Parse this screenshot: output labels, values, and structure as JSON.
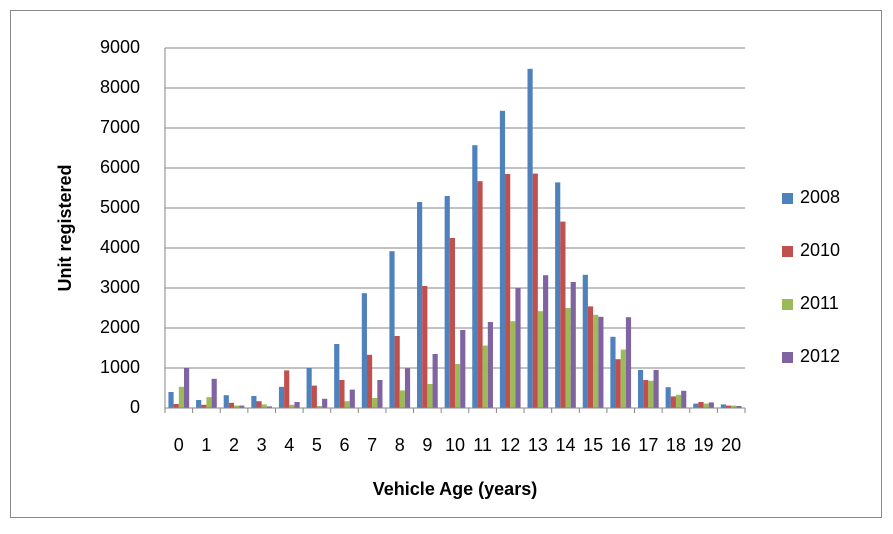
{
  "chart_data": {
    "type": "bar",
    "x_label": "Vehicle Age (years)",
    "y_label": "Unit registered",
    "categories": [
      "0",
      "1",
      "2",
      "3",
      "4",
      "5",
      "6",
      "7",
      "8",
      "9",
      "10",
      "11",
      "12",
      "13",
      "14",
      "15",
      "16",
      "17",
      "18",
      "19",
      "20"
    ],
    "series": [
      {
        "name": "2008",
        "color": "#4f81bd",
        "values": [
          400,
          200,
          320,
          300,
          530,
          1000,
          1600,
          2870,
          3920,
          5150,
          5300,
          6570,
          7430,
          8480,
          5640,
          3330,
          1780,
          950,
          520,
          110,
          90
        ]
      },
      {
        "name": "2010",
        "color": "#c0504d",
        "values": [
          100,
          80,
          130,
          170,
          940,
          560,
          700,
          1330,
          1800,
          3050,
          4250,
          5670,
          5850,
          5860,
          4660,
          2540,
          1220,
          700,
          290,
          150,
          60
        ]
      },
      {
        "name": "2011",
        "color": "#9bbb59",
        "values": [
          530,
          270,
          60,
          90,
          80,
          50,
          170,
          250,
          440,
          600,
          1100,
          1560,
          2170,
          2420,
          2500,
          2330,
          1460,
          680,
          330,
          110,
          60
        ]
      },
      {
        "name": "2012",
        "color": "#8064a2",
        "values": [
          1000,
          730,
          60,
          40,
          150,
          230,
          460,
          700,
          990,
          1350,
          1950,
          2150,
          3000,
          3320,
          3150,
          2280,
          2270,
          950,
          430,
          140,
          50
        ]
      }
    ],
    "ylim": [
      0,
      9000
    ],
    "yticks": [
      0,
      1000,
      2000,
      3000,
      4000,
      5000,
      6000,
      7000,
      8000,
      9000
    ],
    "grid": true,
    "legend": "right"
  }
}
